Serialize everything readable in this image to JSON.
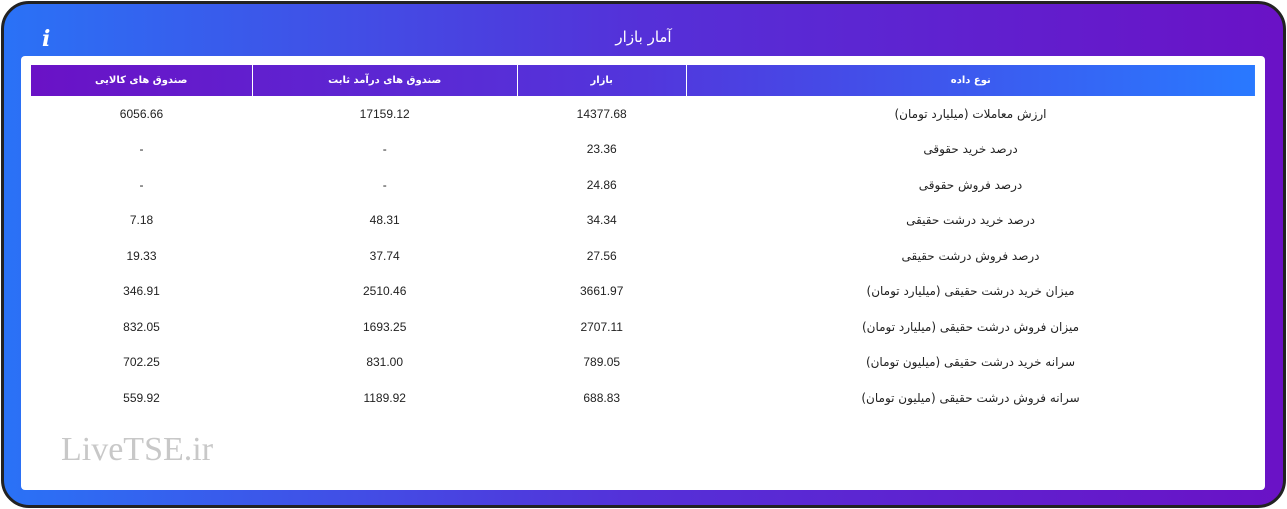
{
  "header": {
    "title": "آمار بازار",
    "info_icon": "info-icon"
  },
  "colors": {
    "gradient_blue": "#2979ff",
    "gradient_purple": "#6a12c6"
  },
  "table": {
    "columns": [
      "نوع داده",
      "بازار",
      "صندوق های درآمد ثابت",
      "صندوق های کالایی"
    ],
    "rows": [
      [
        "ارزش معاملات (میلیارد تومان)",
        "14377.68",
        "17159.12",
        "6056.66"
      ],
      [
        "درصد خرید حقوقی",
        "23.36",
        "-",
        "-"
      ],
      [
        "درصد فروش حقوقی",
        "24.86",
        "-",
        "-"
      ],
      [
        "درصد خرید درشت حقیقی",
        "34.34",
        "48.31",
        "7.18"
      ],
      [
        "درصد فروش درشت حقیقی",
        "27.56",
        "37.74",
        "19.33"
      ],
      [
        "میزان خرید درشت حقیقی (میلیارد تومان)",
        "3661.97",
        "2510.46",
        "346.91"
      ],
      [
        "میزان فروش درشت حقیقی (میلیارد تومان)",
        "2707.11",
        "1693.25",
        "832.05"
      ],
      [
        "سرانه خرید درشت حقیقی (میلیون تومان)",
        "789.05",
        "831.00",
        "702.25"
      ],
      [
        "سرانه فروش درشت حقیقی (میلیون تومان)",
        "688.83",
        "1189.92",
        "559.92"
      ]
    ]
  },
  "watermark": "LiveTSE.ir"
}
